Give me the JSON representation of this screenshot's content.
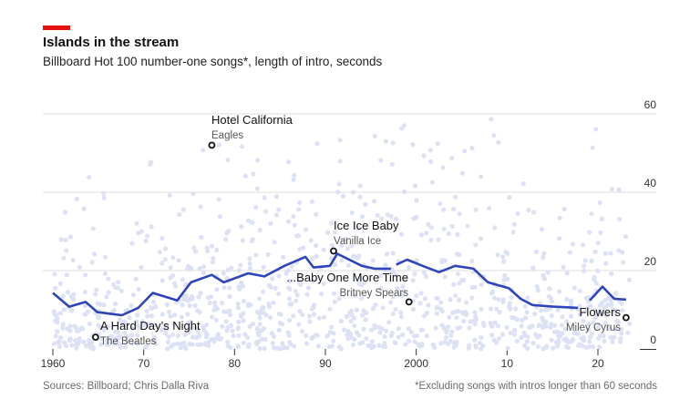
{
  "header": {
    "title": "Islands in the stream",
    "subtitle": "Billboard Hot 100 number-one songs*, length of intro, seconds"
  },
  "footer": {
    "sources": "Sources: Billboard; Chris Dalla Riva",
    "note": "*Excluding songs with intros longer than 60 seconds"
  },
  "colors": {
    "accent": "#e3120b",
    "line": "#2e44bd",
    "dots": "#dde1f4"
  },
  "chart_data": {
    "type": "line",
    "title": "Islands in the stream",
    "xlabel": "",
    "ylabel": "",
    "xlim": [
      1960,
      2024
    ],
    "ylim": [
      0,
      60
    ],
    "x_ticks": [
      1960,
      1970,
      1980,
      1990,
      2000,
      2010,
      2020
    ],
    "x_tick_labels": [
      "1960",
      "70",
      "80",
      "90",
      "2000",
      "10",
      "20"
    ],
    "y_ticks": [
      0,
      20,
      40,
      60
    ],
    "y_tick_labels": [
      "0",
      "20",
      "40",
      "60"
    ],
    "grid": "horizontal",
    "trend": [
      [
        1960,
        14.3
      ],
      [
        1961.8,
        10.8
      ],
      [
        1963.6,
        12
      ],
      [
        1964.9,
        9.4
      ],
      [
        1967.6,
        8.6
      ],
      [
        1969.4,
        10.5
      ],
      [
        1971,
        14.3
      ],
      [
        1973.7,
        12.4
      ],
      [
        1975.2,
        17
      ],
      [
        1977.5,
        18.9
      ],
      [
        1978.8,
        17
      ],
      [
        1981.5,
        19.3
      ],
      [
        1983.3,
        18.5
      ],
      [
        1985.5,
        21.2
      ],
      [
        1987.8,
        23.5
      ],
      [
        1988.7,
        20.8
      ],
      [
        1990.5,
        21.2
      ],
      [
        1991.3,
        24.3
      ],
      [
        1994,
        21.2
      ],
      [
        1995.4,
        20.5
      ],
      [
        1997.2,
        20.5
      ],
      null,
      [
        1997.8,
        21.5
      ],
      [
        1999,
        22.8
      ],
      [
        2000.7,
        21.2
      ],
      [
        2002.5,
        19.6
      ],
      [
        2004.3,
        21.2
      ],
      [
        2006.3,
        20.5
      ],
      [
        2007.9,
        17
      ],
      [
        2010.2,
        15.5
      ],
      [
        2011.5,
        12.8
      ],
      [
        2012.8,
        11.2
      ],
      [
        2015.1,
        10.8
      ],
      [
        2017.8,
        10.5
      ],
      null,
      [
        2019.1,
        12.4
      ],
      [
        2020.5,
        15.9
      ],
      [
        2021.8,
        12.8
      ],
      [
        2023.1,
        12.6
      ]
    ],
    "annotations": [
      {
        "title": "Hotel California",
        "artist": "Eagles",
        "year": 1977.5,
        "intro": 52
      },
      {
        "title": "Ice Ice Baby",
        "artist": "Vanilla Ice",
        "year": 1990.9,
        "intro": 25
      },
      {
        "title": "...Baby One More Time",
        "artist": "Britney Spears",
        "year": 1999.2,
        "intro": 12
      },
      {
        "title": "A Hard Day’s Night",
        "artist": "The Beatles",
        "year": 1964.7,
        "intro": 3
      },
      {
        "title": "Flowers",
        "artist": "Miley Cyrus",
        "year": 2023.1,
        "intro": 8
      }
    ]
  }
}
